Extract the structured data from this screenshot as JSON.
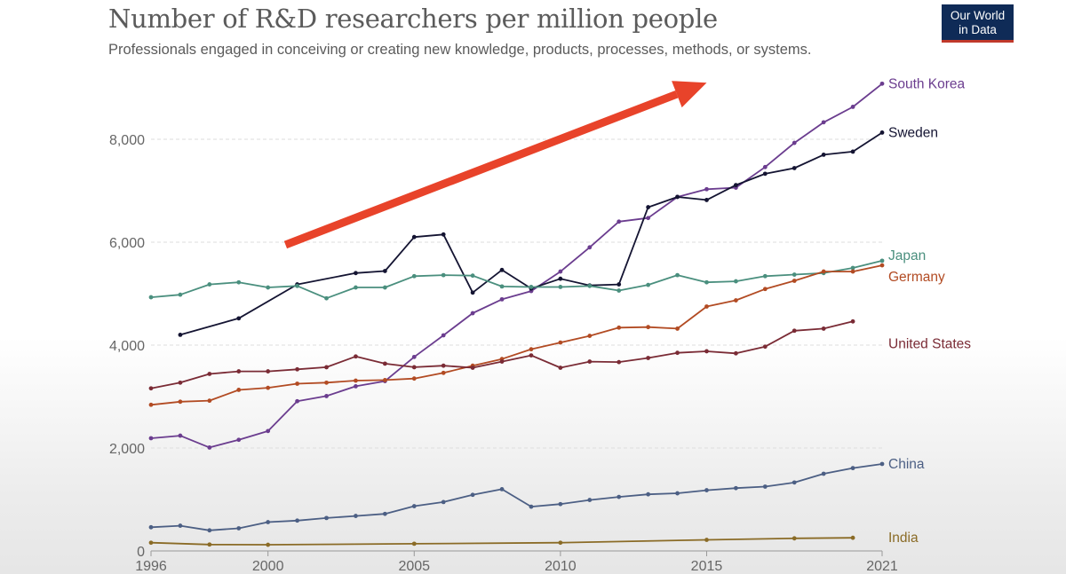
{
  "header": {
    "title": "Number of R&D researchers per million people",
    "subtitle": "Professionals engaged in conceiving or creating new knowledge, products, processes, methods, or systems.",
    "logo_line1": "Our World",
    "logo_line2": "in Data"
  },
  "chart_data": {
    "type": "line",
    "title": "Number of R&D researchers per million people",
    "xlabel": "",
    "ylabel": "",
    "xlim": [
      1996,
      2021
    ],
    "ylim": [
      0,
      9200
    ],
    "yticks": [
      0,
      2000,
      4000,
      6000,
      8000
    ],
    "ytick_labels": [
      "0",
      "2,000",
      "4,000",
      "6,000",
      "8,000"
    ],
    "xticks": [
      1996,
      2000,
      2005,
      2010,
      2015,
      2021
    ],
    "xtick_labels": [
      "1996",
      "2000",
      "2005",
      "2010",
      "2015",
      "2021"
    ],
    "grid": true,
    "annotations": [
      {
        "type": "arrow",
        "description": "upward trend arrow",
        "from": [
          2000.6,
          5950
        ],
        "to": [
          2015,
          9100
        ],
        "color": "#e8432a"
      }
    ],
    "series": [
      {
        "name": "South Korea",
        "color": "#6b3d8f",
        "x": [
          1996,
          1997,
          1998,
          1999,
          2000,
          2001,
          2002,
          2003,
          2004,
          2005,
          2006,
          2007,
          2008,
          2009,
          2010,
          2011,
          2012,
          2013,
          2014,
          2015,
          2016,
          2017,
          2018,
          2019,
          2020,
          2021
        ],
        "values": [
          2190,
          2240,
          2010,
          2160,
          2330,
          2910,
          3010,
          3200,
          3300,
          3770,
          4190,
          4620,
          4890,
          5050,
          5430,
          5900,
          6400,
          6470,
          6880,
          7030,
          7060,
          7460,
          7930,
          8330,
          8630,
          9080
        ]
      },
      {
        "name": "Sweden",
        "color": "#141432",
        "x": [
          1997,
          1999,
          2001,
          2003,
          2004,
          2005,
          2006,
          2007,
          2008,
          2009,
          2010,
          2011,
          2012,
          2013,
          2014,
          2015,
          2016,
          2017,
          2018,
          2019,
          2020,
          2021
        ],
        "values": [
          4200,
          4520,
          5180,
          5400,
          5440,
          6100,
          6150,
          5020,
          5460,
          5100,
          5290,
          5160,
          5180,
          6680,
          6880,
          6820,
          7110,
          7330,
          7440,
          7700,
          7760,
          8130
        ]
      },
      {
        "name": "Japan",
        "color": "#4a8f7e",
        "x": [
          1996,
          1997,
          1998,
          1999,
          2000,
          2001,
          2002,
          2003,
          2004,
          2005,
          2006,
          2007,
          2008,
          2009,
          2010,
          2011,
          2012,
          2013,
          2014,
          2015,
          2016,
          2017,
          2018,
          2019,
          2020,
          2021
        ],
        "values": [
          4930,
          4980,
          5180,
          5220,
          5120,
          5150,
          4910,
          5120,
          5120,
          5340,
          5360,
          5350,
          5140,
          5130,
          5130,
          5150,
          5060,
          5170,
          5360,
          5220,
          5240,
          5340,
          5370,
          5400,
          5500,
          5640
        ]
      },
      {
        "name": "Germany",
        "color": "#b24b23",
        "x": [
          1996,
          1997,
          1998,
          1999,
          2000,
          2001,
          2002,
          2003,
          2004,
          2005,
          2006,
          2007,
          2008,
          2009,
          2010,
          2011,
          2012,
          2013,
          2014,
          2015,
          2016,
          2017,
          2018,
          2019,
          2020,
          2021
        ],
        "values": [
          2840,
          2900,
          2920,
          3130,
          3170,
          3250,
          3270,
          3310,
          3320,
          3350,
          3460,
          3600,
          3730,
          3920,
          4050,
          4180,
          4340,
          4350,
          4320,
          4750,
          4870,
          5090,
          5250,
          5430,
          5430,
          5550
        ]
      },
      {
        "name": "United States",
        "color": "#7a2b35",
        "x": [
          1996,
          1997,
          1998,
          1999,
          2000,
          2001,
          2002,
          2003,
          2004,
          2005,
          2006,
          2007,
          2008,
          2009,
          2010,
          2011,
          2012,
          2013,
          2014,
          2015,
          2016,
          2017,
          2018,
          2019,
          2020
        ],
        "values": [
          3160,
          3270,
          3440,
          3490,
          3490,
          3530,
          3570,
          3780,
          3640,
          3570,
          3600,
          3560,
          3680,
          3800,
          3560,
          3680,
          3670,
          3750,
          3850,
          3880,
          3840,
          3970,
          4280,
          4320,
          4460
        ]
      },
      {
        "name": "China",
        "color": "#4c5f84",
        "x": [
          1996,
          1997,
          1998,
          1999,
          2000,
          2001,
          2002,
          2003,
          2004,
          2005,
          2006,
          2007,
          2008,
          2009,
          2010,
          2011,
          2012,
          2013,
          2014,
          2015,
          2016,
          2017,
          2018,
          2019,
          2020,
          2021
        ],
        "values": [
          460,
          490,
          400,
          440,
          560,
          590,
          640,
          680,
          720,
          870,
          950,
          1090,
          1200,
          860,
          910,
          990,
          1050,
          1100,
          1120,
          1180,
          1220,
          1250,
          1330,
          1500,
          1610,
          1690
        ]
      },
      {
        "name": "India",
        "color": "#8a6b26",
        "x": [
          1996,
          1998,
          2000,
          2005,
          2010,
          2015,
          2018,
          2020
        ],
        "values": [
          160,
          125,
          120,
          140,
          160,
          215,
          245,
          255
        ]
      }
    ]
  }
}
